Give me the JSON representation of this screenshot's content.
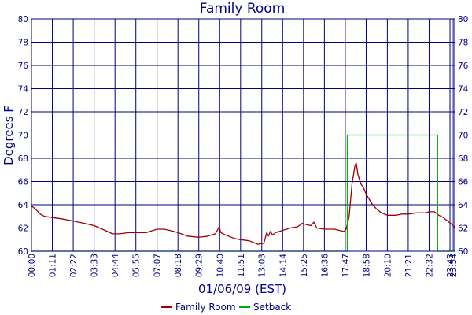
{
  "chart_data": {
    "type": "line",
    "title": "Family Room",
    "xlabel": "01/06/09 (EST)",
    "ylabel": "Degrees F",
    "ylim": [
      60,
      80
    ],
    "xlim_minutes": [
      0,
      1439
    ],
    "y_ticks": [
      "60",
      "62",
      "64",
      "66",
      "68",
      "70",
      "72",
      "74",
      "76",
      "78",
      "80"
    ],
    "x_ticks": [
      {
        "label": "00:00",
        "minute": 0
      },
      {
        "label": "01:11",
        "minute": 71
      },
      {
        "label": "02:22",
        "minute": 142
      },
      {
        "label": "03:33",
        "minute": 213
      },
      {
        "label": "04:44",
        "minute": 284
      },
      {
        "label": "05:55",
        "minute": 355
      },
      {
        "label": "07:07",
        "minute": 427
      },
      {
        "label": "08:18",
        "minute": 498
      },
      {
        "label": "09:29",
        "minute": 569
      },
      {
        "label": "10:40",
        "minute": 640
      },
      {
        "label": "11:51",
        "minute": 711
      },
      {
        "label": "13:03",
        "minute": 783
      },
      {
        "label": "14:14",
        "minute": 854
      },
      {
        "label": "15:25",
        "minute": 925
      },
      {
        "label": "16:36",
        "minute": 996
      },
      {
        "label": "17:47",
        "minute": 1067
      },
      {
        "label": "18:58",
        "minute": 1138
      },
      {
        "label": "20:10",
        "minute": 1210
      },
      {
        "label": "21:21",
        "minute": 1281
      },
      {
        "label": "22:32",
        "minute": 1352
      },
      {
        "label": "23:43",
        "minute": 1423
      },
      {
        "label": "23:54",
        "minute": 1434
      }
    ],
    "grid": true,
    "legend_position": "bottom-center",
    "series": [
      {
        "name": "Family Room",
        "color": "#a00000",
        "points": [
          [
            0,
            63.9
          ],
          [
            15,
            63.6
          ],
          [
            30,
            63.2
          ],
          [
            45,
            63.0
          ],
          [
            71,
            62.9
          ],
          [
            100,
            62.8
          ],
          [
            142,
            62.6
          ],
          [
            180,
            62.4
          ],
          [
            213,
            62.2
          ],
          [
            250,
            61.8
          ],
          [
            275,
            61.5
          ],
          [
            300,
            61.5
          ],
          [
            330,
            61.6
          ],
          [
            355,
            61.6
          ],
          [
            390,
            61.6
          ],
          [
            427,
            61.9
          ],
          [
            450,
            61.9
          ],
          [
            470,
            61.8
          ],
          [
            498,
            61.6
          ],
          [
            530,
            61.3
          ],
          [
            569,
            61.2
          ],
          [
            600,
            61.3
          ],
          [
            625,
            61.5
          ],
          [
            632,
            61.8
          ],
          [
            638,
            62.1
          ],
          [
            644,
            61.6
          ],
          [
            660,
            61.4
          ],
          [
            690,
            61.1
          ],
          [
            711,
            61.0
          ],
          [
            740,
            60.9
          ],
          [
            770,
            60.6
          ],
          [
            790,
            60.7
          ],
          [
            800,
            61.6
          ],
          [
            806,
            61.3
          ],
          [
            812,
            61.7
          ],
          [
            820,
            61.4
          ],
          [
            830,
            61.6
          ],
          [
            854,
            61.8
          ],
          [
            880,
            62.0
          ],
          [
            905,
            62.1
          ],
          [
            920,
            62.4
          ],
          [
            935,
            62.3
          ],
          [
            950,
            62.2
          ],
          [
            960,
            62.5
          ],
          [
            970,
            62.0
          ],
          [
            996,
            61.9
          ],
          [
            1030,
            61.9
          ],
          [
            1062,
            61.7
          ],
          [
            1070,
            61.9
          ],
          [
            1080,
            63.0
          ],
          [
            1090,
            65.8
          ],
          [
            1100,
            67.4
          ],
          [
            1104,
            67.6
          ],
          [
            1110,
            66.6
          ],
          [
            1120,
            65.8
          ],
          [
            1130,
            65.4
          ],
          [
            1138,
            64.9
          ],
          [
            1150,
            64.4
          ],
          [
            1160,
            64.0
          ],
          [
            1175,
            63.6
          ],
          [
            1190,
            63.3
          ],
          [
            1210,
            63.1
          ],
          [
            1240,
            63.1
          ],
          [
            1260,
            63.2
          ],
          [
            1281,
            63.2
          ],
          [
            1310,
            63.3
          ],
          [
            1340,
            63.3
          ],
          [
            1352,
            63.4
          ],
          [
            1370,
            63.4
          ],
          [
            1385,
            63.1
          ],
          [
            1400,
            62.9
          ],
          [
            1415,
            62.6
          ],
          [
            1425,
            62.4
          ],
          [
            1434,
            62.2
          ],
          [
            1439,
            62.0
          ]
        ]
      },
      {
        "name": "Setback",
        "color": "#00b000",
        "points": [
          [
            0,
            60
          ],
          [
            1074,
            60
          ],
          [
            1074,
            70
          ],
          [
            1381,
            70
          ],
          [
            1381,
            60
          ],
          [
            1439,
            60
          ]
        ]
      }
    ]
  }
}
